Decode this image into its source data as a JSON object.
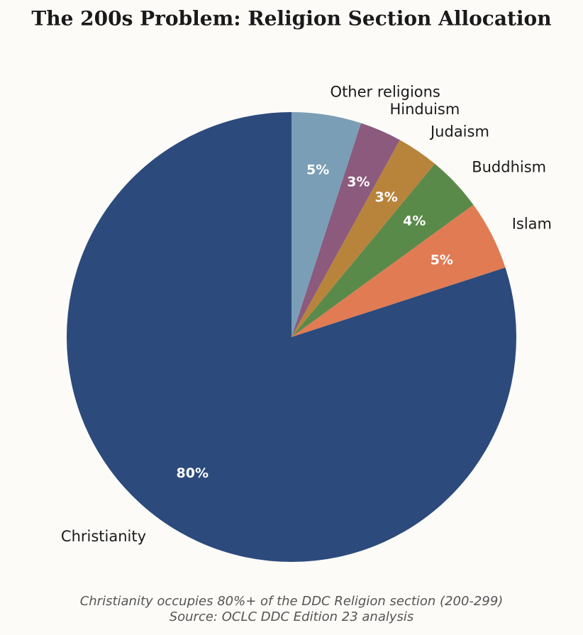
{
  "chart_data": {
    "type": "pie",
    "title": "The 200s Problem: Religion Section Allocation",
    "categories": [
      "Christianity",
      "Islam",
      "Buddhism",
      "Judaism",
      "Hinduism",
      "Other religions"
    ],
    "values": [
      80,
      5,
      4,
      3,
      3,
      5
    ],
    "value_labels": [
      "80%",
      "5%",
      "4%",
      "3%",
      "3%",
      "5%"
    ],
    "colors": [
      "#2c4a7c",
      "#e07b54",
      "#5a8a4a",
      "#b8843c",
      "#8b5a7c",
      "#7a9eb6"
    ],
    "caption": "Christianity occupies 80%+ of the DDC Religion section (200-299)",
    "source": "Source: OCLC DDC Edition 23 analysis"
  }
}
